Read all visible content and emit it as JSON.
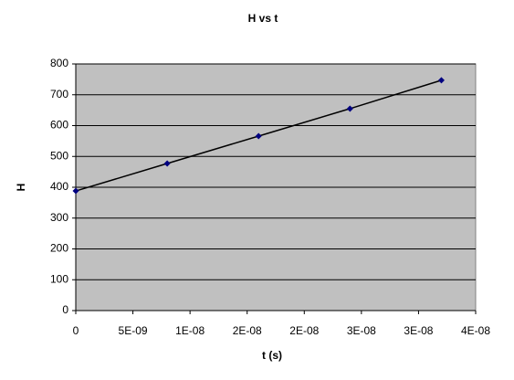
{
  "chart_data": {
    "type": "scatter",
    "title": "H vs t",
    "x_label": "t (s)",
    "y_label": "H",
    "series": [
      {
        "name": "H",
        "color": "#000080",
        "line_color": "#000000",
        "x": [
          0,
          8e-09,
          1.6e-08,
          2.4e-08,
          3.2e-08
        ],
        "values": [
          388,
          477,
          566,
          655,
          747
        ]
      }
    ],
    "xlim": [
      0,
      3.5e-08
    ],
    "xticks": [
      0,
      {
        "value": 5e-09,
        "label": "5E-09"
      },
      {
        "value": 1e-08,
        "label": "1E-08"
      },
      {
        "value": 1.5e-08,
        "label": "2E-08"
      },
      {
        "value": 2e-08,
        "label": "2E-08"
      },
      {
        "value": 2.5e-08,
        "label": "3E-08"
      },
      {
        "value": 3e-08,
        "label": "3E-08"
      },
      {
        "value": 3.5e-08,
        "label": "4E-08"
      }
    ],
    "ylim": [
      0,
      800
    ],
    "yticks": [
      0,
      100,
      200,
      300,
      400,
      500,
      600,
      700,
      800
    ],
    "grid": true,
    "plot_background": "#c0c0c0"
  }
}
